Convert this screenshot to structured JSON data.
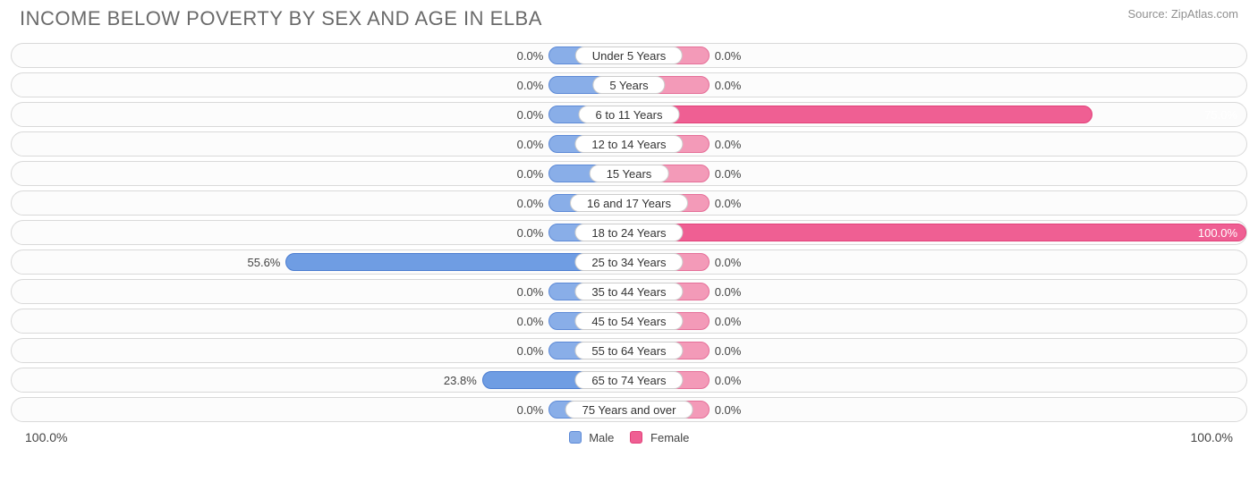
{
  "title": "INCOME BELOW POVERTY BY SEX AND AGE IN ELBA",
  "source": "Source: ZipAtlas.com",
  "axis": {
    "left": "100.0%",
    "right": "100.0%"
  },
  "legend": {
    "male": "Male",
    "female": "Female"
  },
  "colors": {
    "male_fill": "#89aee8",
    "male_border": "#5c89d6",
    "male_strong_fill": "#6f9de3",
    "male_strong_border": "#4a7cd0",
    "female_fill": "#f39ab8",
    "female_border": "#e56f98",
    "female_strong_fill": "#ef5f93",
    "female_strong_border": "#e24079",
    "track_border": "#d9d9d9",
    "text": "#444444"
  },
  "min_bar_pct": 13,
  "rows": [
    {
      "category": "Under 5 Years",
      "male": 0.0,
      "female": 0.0,
      "male_label": "0.0%",
      "female_label": "0.0%"
    },
    {
      "category": "5 Years",
      "male": 0.0,
      "female": 0.0,
      "male_label": "0.0%",
      "female_label": "0.0%"
    },
    {
      "category": "6 to 11 Years",
      "male": 0.0,
      "female": 75.0,
      "male_label": "0.0%",
      "female_label": "75.0%"
    },
    {
      "category": "12 to 14 Years",
      "male": 0.0,
      "female": 0.0,
      "male_label": "0.0%",
      "female_label": "0.0%"
    },
    {
      "category": "15 Years",
      "male": 0.0,
      "female": 0.0,
      "male_label": "0.0%",
      "female_label": "0.0%"
    },
    {
      "category": "16 and 17 Years",
      "male": 0.0,
      "female": 0.0,
      "male_label": "0.0%",
      "female_label": "0.0%"
    },
    {
      "category": "18 to 24 Years",
      "male": 0.0,
      "female": 100.0,
      "male_label": "0.0%",
      "female_label": "100.0%"
    },
    {
      "category": "25 to 34 Years",
      "male": 55.6,
      "female": 0.0,
      "male_label": "55.6%",
      "female_label": "0.0%"
    },
    {
      "category": "35 to 44 Years",
      "male": 0.0,
      "female": 0.0,
      "male_label": "0.0%",
      "female_label": "0.0%"
    },
    {
      "category": "45 to 54 Years",
      "male": 0.0,
      "female": 0.0,
      "male_label": "0.0%",
      "female_label": "0.0%"
    },
    {
      "category": "55 to 64 Years",
      "male": 0.0,
      "female": 0.0,
      "male_label": "0.0%",
      "female_label": "0.0%"
    },
    {
      "category": "65 to 74 Years",
      "male": 23.8,
      "female": 0.0,
      "male_label": "23.8%",
      "female_label": "0.0%"
    },
    {
      "category": "75 Years and over",
      "male": 0.0,
      "female": 0.0,
      "male_label": "0.0%",
      "female_label": "0.0%"
    }
  ]
}
